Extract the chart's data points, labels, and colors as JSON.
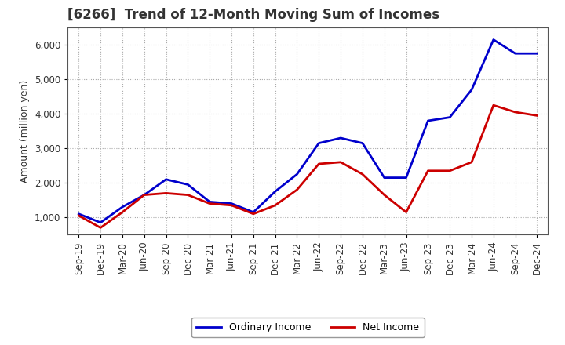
{
  "title": "[6266]  Trend of 12-Month Moving Sum of Incomes",
  "ylabel": "Amount (million yen)",
  "x_labels": [
    "Sep-19",
    "Dec-19",
    "Mar-20",
    "Jun-20",
    "Sep-20",
    "Dec-20",
    "Mar-21",
    "Jun-21",
    "Sep-21",
    "Dec-21",
    "Mar-22",
    "Jun-22",
    "Sep-22",
    "Dec-22",
    "Mar-23",
    "Jun-23",
    "Sep-23",
    "Dec-23",
    "Mar-24",
    "Jun-24",
    "Sep-24",
    "Dec-24"
  ],
  "ordinary_income": [
    1100,
    850,
    1300,
    1650,
    2100,
    1950,
    1450,
    1400,
    1150,
    1750,
    2250,
    3150,
    3300,
    3150,
    2150,
    2150,
    3800,
    3900,
    4700,
    6150,
    5750,
    5750
  ],
  "net_income": [
    1050,
    700,
    1150,
    1650,
    1700,
    1650,
    1400,
    1350,
    1100,
    1350,
    1800,
    2550,
    2600,
    2250,
    1650,
    1150,
    2350,
    2350,
    2600,
    4250,
    4050,
    3950
  ],
  "ordinary_income_color": "#0000cc",
  "net_income_color": "#cc0000",
  "background_color": "#ffffff",
  "grid_color": "#aaaaaa",
  "ylim_min": 500,
  "ylim_max": 6500,
  "yticks": [
    1000,
    2000,
    3000,
    4000,
    5000,
    6000
  ],
  "legend_ordinary": "Ordinary Income",
  "legend_net": "Net Income",
  "line_width": 2.0,
  "title_fontsize": 12,
  "title_color": "#333333",
  "tick_fontsize": 8.5,
  "ylabel_fontsize": 9
}
